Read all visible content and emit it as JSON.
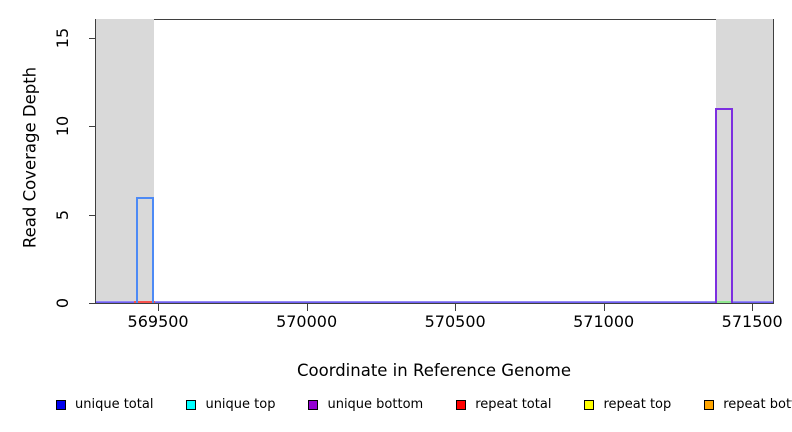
{
  "chart_data": {
    "type": "line",
    "title": "",
    "xlabel": "Coordinate in Reference Genome",
    "ylabel": "Read Coverage Depth",
    "xlim": [
      569291,
      571570
    ],
    "ylim": [
      0,
      16
    ],
    "x_ticks": [
      "569500",
      "570000",
      "570500",
      "571000",
      "571500"
    ],
    "x_tick_values": [
      569500,
      570000,
      570500,
      571000,
      571500
    ],
    "y_ticks": [
      "0",
      "5",
      "10",
      "15"
    ],
    "y_tick_values": [
      0,
      5,
      10,
      15
    ],
    "grid": false,
    "region_fill_color": "#d9d9d9",
    "frame_color": "#3f3f3f",
    "repeat_regions": [
      {
        "start": 569291,
        "end": 569486
      },
      {
        "start": 571378,
        "end": 571570
      }
    ],
    "coverage_bars": [
      {
        "series": "unique total",
        "stroke": "#4d8af5",
        "start": 569426,
        "end": 569486,
        "depth": 6
      },
      {
        "series": "unique bottom",
        "stroke": "#7d2fe0",
        "start": 571375,
        "end": 571435,
        "depth": 11
      }
    ],
    "baseline": {
      "depth": 0,
      "gradient_top": "#a89df8",
      "gradient_bottom": "#5c4cee",
      "segments": [
        {
          "color": "#f8524e",
          "start": 569420,
          "end": 569490
        },
        {
          "color": "#90e890",
          "start": 571375,
          "end": 571432
        }
      ]
    },
    "legend": {
      "position": "bottom",
      "entries": [
        {
          "label": "unique total",
          "color": "#0000ee"
        },
        {
          "label": "unique top",
          "color": "#00ffff"
        },
        {
          "label": "unique bottom",
          "color": "#9400d3"
        },
        {
          "label": "repeat total",
          "color": "#ff0000"
        },
        {
          "label": "repeat top",
          "color": "#ffff00"
        },
        {
          "label": "repeat bottom",
          "color": "#ffa500"
        }
      ]
    }
  }
}
